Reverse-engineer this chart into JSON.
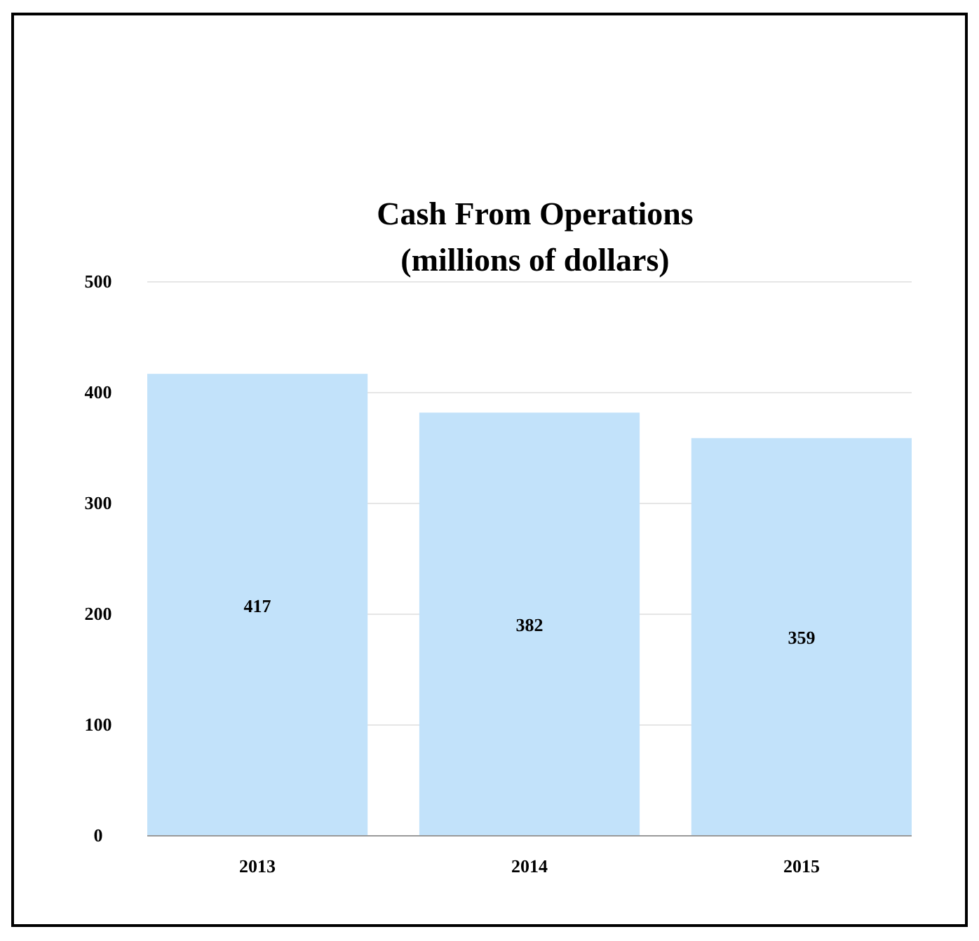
{
  "chart_data": {
    "type": "bar",
    "title": "Cash From Operations",
    "subtitle": "(millions of dollars)",
    "categories": [
      "2013",
      "2014",
      "2015"
    ],
    "values": [
      417,
      382,
      359
    ],
    "color": "#c2e2fa",
    "ylim": [
      0,
      500
    ],
    "yticks": [
      0,
      100,
      200,
      300,
      400,
      500
    ],
    "grid": "y",
    "data_labels": true
  }
}
